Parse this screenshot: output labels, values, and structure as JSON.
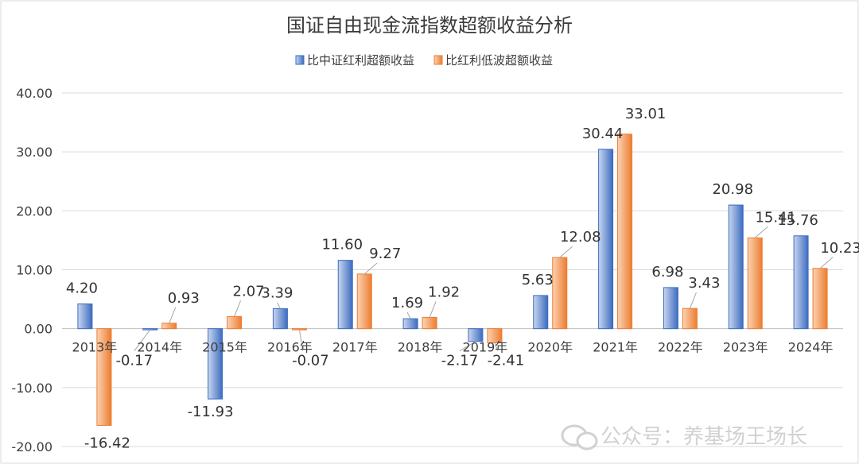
{
  "chart_data": {
    "type": "bar",
    "title": "国证自由现金流指数超额收益分析",
    "categories": [
      "2013年",
      "2014年",
      "2015年",
      "2016年",
      "2017年",
      "2018年",
      "2019年",
      "2020年",
      "2021年",
      "2022年",
      "2023年",
      "2024年"
    ],
    "series": [
      {
        "name": "比中证红利超额收益",
        "color": "#4472c4",
        "values": [
          4.2,
          -0.17,
          -11.93,
          3.39,
          11.6,
          1.69,
          -2.17,
          5.63,
          30.44,
          6.98,
          20.98,
          15.76
        ]
      },
      {
        "name": "比红利低波超额收益",
        "color": "#ed7d31",
        "values": [
          -16.42,
          0.93,
          2.07,
          -0.07,
          9.27,
          1.92,
          -2.41,
          12.08,
          33.01,
          3.43,
          15.41,
          10.23
        ]
      }
    ],
    "value_labels": [
      [
        "4.20",
        "-0.17",
        "-11.93",
        "3.39",
        "11.60",
        "1.69",
        "-2.17",
        "5.63",
        "30.44",
        "6.98",
        "20.98",
        "15.76"
      ],
      [
        "-16.42",
        "0.93",
        "2.07",
        "-0.07",
        "9.27",
        "1.92",
        "-2.41",
        "12.08",
        "33.01",
        "3.43",
        "15.41",
        "10.23"
      ]
    ],
    "ylim": [
      -20,
      40
    ],
    "yticks": [
      40,
      30,
      20,
      10,
      0,
      -10,
      -20
    ],
    "ytick_labels": [
      "40.00",
      "30.00",
      "20.00",
      "10.00",
      "0.00",
      "-10.00",
      "-20.00"
    ],
    "legend_position": "top",
    "grid": true,
    "xlabel": "",
    "ylabel": ""
  },
  "watermark": "公众号：养基场王场长"
}
